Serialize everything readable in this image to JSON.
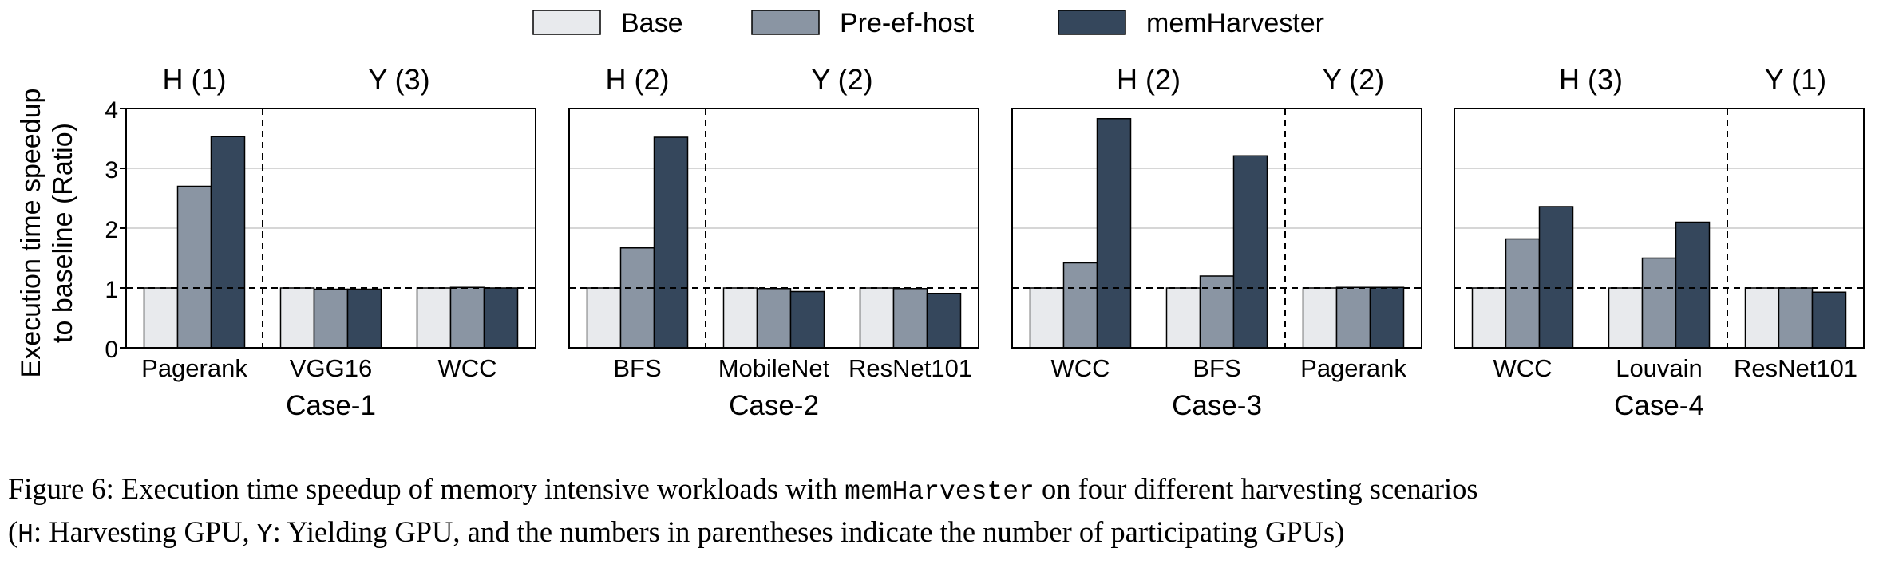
{
  "legend": [
    {
      "name": "Base",
      "color": "#e8eaed"
    },
    {
      "name": "Pre-ef-host",
      "color": "#8a95a3"
    },
    {
      "name": "memHarvester",
      "color": "#35475c"
    }
  ],
  "ylabel_line1": "Execution time speedup",
  "ylabel_line2": "to baseline (Ratio)",
  "chart_data": {
    "type": "bar",
    "ylim": [
      0,
      4
    ],
    "yticks": [
      "0",
      "1",
      "2",
      "3",
      "4"
    ],
    "grid": true,
    "baseline": 1,
    "legend_position": "top-center",
    "series_names": [
      "Base",
      "Pre-ef-host",
      "memHarvester"
    ],
    "panels": [
      {
        "case": "Case-1",
        "groups": [
          {
            "label": "H (1)",
            "count": 1
          },
          {
            "label": "Y (3)",
            "count": 2
          }
        ],
        "workloads": [
          {
            "name": "Pagerank",
            "values": [
              1.0,
              2.7,
              3.53
            ]
          },
          {
            "name": "VGG16",
            "values": [
              1.0,
              0.98,
              0.98
            ]
          },
          {
            "name": "WCC",
            "values": [
              1.0,
              1.01,
              1.0
            ]
          }
        ]
      },
      {
        "case": "Case-2",
        "groups": [
          {
            "label": "H (2)",
            "count": 1
          },
          {
            "label": "Y (2)",
            "count": 2
          }
        ],
        "workloads": [
          {
            "name": "BFS",
            "values": [
              1.0,
              1.67,
              3.52
            ]
          },
          {
            "name": "MobileNet",
            "values": [
              1.0,
              0.99,
              0.94
            ]
          },
          {
            "name": "ResNet101",
            "values": [
              1.0,
              0.99,
              0.91
            ]
          }
        ]
      },
      {
        "case": "Case-3",
        "groups": [
          {
            "label": "H (2)",
            "count": 2
          },
          {
            "label": "Y (2)",
            "count": 1
          }
        ],
        "workloads": [
          {
            "name": "WCC",
            "values": [
              1.0,
              1.42,
              3.83
            ]
          },
          {
            "name": "BFS",
            "values": [
              1.0,
              1.2,
              3.21
            ]
          },
          {
            "name": "Pagerank",
            "values": [
              1.0,
              1.01,
              1.01
            ]
          }
        ]
      },
      {
        "case": "Case-4",
        "groups": [
          {
            "label": "H (3)",
            "count": 2
          },
          {
            "label": "Y (1)",
            "count": 1
          }
        ],
        "workloads": [
          {
            "name": "WCC",
            "values": [
              1.0,
              1.82,
              2.36
            ]
          },
          {
            "name": "Louvain",
            "values": [
              1.0,
              1.5,
              2.1
            ]
          },
          {
            "name": "ResNet101",
            "values": [
              1.0,
              1.0,
              0.93
            ]
          }
        ]
      }
    ]
  },
  "caption": {
    "part1": "Figure 6: Execution time speedup of memory intensive workloads with ",
    "code1": "memHarvester",
    "part2": " on four different harvesting scenarios",
    "line2_open": "(",
    "code2": "H",
    "part3": ": Harvesting GPU, ",
    "code3": "Y",
    "part4": ": Yielding GPU, and the numbers in parentheses indicate the number of participating GPUs)"
  }
}
